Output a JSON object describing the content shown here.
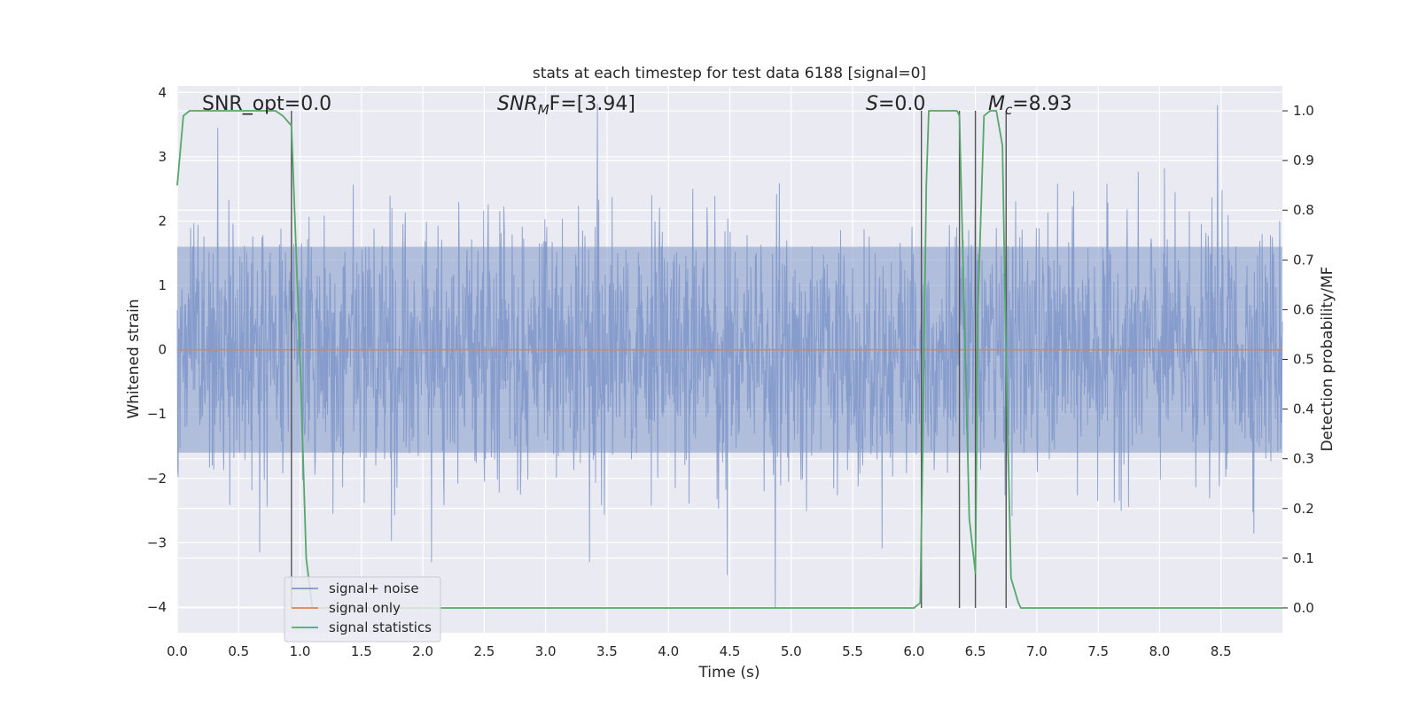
{
  "chart_data": {
    "type": "line",
    "title": "stats at each timestep for test data 6188 [signal=0]",
    "xlabel": "Time (s)",
    "ylabel_left": "Whitened strain",
    "ylabel_right": "Detection probability/MF",
    "xlim": [
      0.0,
      9.0
    ],
    "ylim_left": [
      -4.4,
      4.1
    ],
    "ylim_right": [
      -0.05,
      1.05
    ],
    "x_ticks": [
      "0.0",
      "0.5",
      "1.0",
      "1.5",
      "2.0",
      "2.5",
      "3.0",
      "3.5",
      "4.0",
      "4.5",
      "5.0",
      "5.5",
      "6.0",
      "6.5",
      "7.0",
      "7.5",
      "8.0",
      "8.5"
    ],
    "y_ticks_left": [
      "4",
      "3",
      "2",
      "1",
      "0",
      "−1",
      "−2",
      "−3",
      "−4"
    ],
    "y_ticks_right": [
      "1.0",
      "0.9",
      "0.8",
      "0.7",
      "0.6",
      "0.5",
      "0.4",
      "0.3",
      "0.2",
      "0.1",
      "0.0"
    ],
    "grid": true,
    "legend_placement": "lower-left",
    "annotations": {
      "snr_opt": "SNR_opt=0.0",
      "snr_mf_sym": "SNR",
      "snr_mf_sub": "M",
      "snr_mf_rest": "F=[3.94]",
      "s_sym": "S",
      "s_rest": "=0.0",
      "mc_sym": "M",
      "mc_sub": "c",
      "mc_rest": "=8.93"
    },
    "series": [
      {
        "name": "signal+ noise",
        "axis": "left",
        "color": "#7f97c9",
        "description_values": "whitened noise, approx. within [-4, 4]",
        "envelope_core": [
          -1.6,
          1.6
        ],
        "notable_peaks": [
          {
            "x": 3.42,
            "y": 3.82
          },
          {
            "x": 8.47,
            "y": 3.8
          },
          {
            "x": 0.33,
            "y": 3.45
          },
          {
            "x": 4.87,
            "y": -4.0
          },
          {
            "x": 4.48,
            "y": -3.5
          },
          {
            "x": 2.07,
            "y": -3.3
          },
          {
            "x": 0.67,
            "y": -3.15
          }
        ]
      },
      {
        "name": "signal only",
        "axis": "left",
        "color": "#dd8452",
        "x": [
          0.0,
          9.0
        ],
        "y": [
          0.0,
          0.0
        ]
      },
      {
        "name": "signal statistics",
        "axis": "right",
        "color": "#55a868",
        "x": [
          0.0,
          0.05,
          0.1,
          0.8,
          0.86,
          0.93,
          1.0,
          1.05,
          1.1,
          1.15,
          6.0,
          6.05,
          6.07,
          6.1,
          6.12,
          6.35,
          6.37,
          6.45,
          6.5,
          6.52,
          6.57,
          6.62,
          6.67,
          6.72,
          6.75,
          6.79,
          6.85,
          6.87,
          7.3,
          9.0
        ],
        "y": [
          0.85,
          0.99,
          1.0,
          1.0,
          0.99,
          0.97,
          0.5,
          0.1,
          0.0,
          0.0,
          0.0,
          0.01,
          0.3,
          0.85,
          1.0,
          1.0,
          0.99,
          0.18,
          0.07,
          0.6,
          0.99,
          1.0,
          1.0,
          0.93,
          0.5,
          0.06,
          0.01,
          0.0,
          0.0,
          0.0
        ]
      }
    ],
    "vertical_lines": {
      "color": "#555555",
      "x": [
        0.93,
        6.06,
        6.37,
        6.5,
        6.75
      ]
    }
  }
}
